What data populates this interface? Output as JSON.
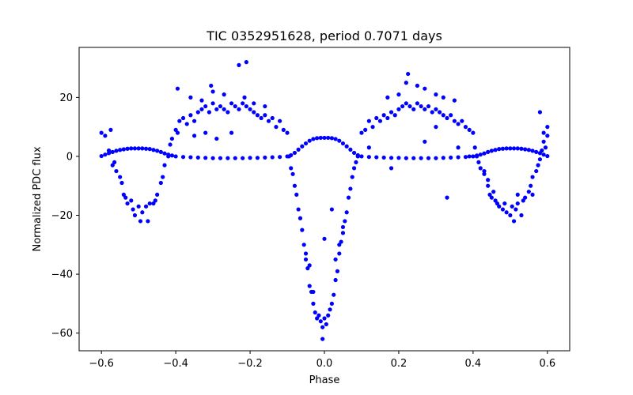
{
  "chart_data": {
    "type": "scatter",
    "title": "TIC 0352951628, period 0.7071 days",
    "xlabel": "Phase",
    "ylabel": "Normalized PDC flux",
    "xlim": [
      -0.66,
      0.66
    ],
    "ylim": [
      -66,
      37
    ],
    "xticks": [
      -0.6,
      -0.4,
      -0.2,
      0.0,
      0.2,
      0.4,
      0.6
    ],
    "xtick_labels": [
      "−0.6",
      "−0.4",
      "−0.2",
      "0.0",
      "0.2",
      "0.4",
      "0.6"
    ],
    "yticks": [
      -60,
      -40,
      -20,
      0,
      20
    ],
    "ytick_labels": [
      "−60",
      "−40",
      "−20",
      "0",
      "20"
    ],
    "grid": false,
    "marker_color": "#0000ff",
    "series": [
      {
        "values_desc": "smooth model curve",
        "points": [
          [
            -0.6,
            0.1
          ],
          [
            -0.59,
            0.6
          ],
          [
            -0.58,
            1.1
          ],
          [
            -0.57,
            1.5
          ],
          [
            -0.56,
            1.9
          ],
          [
            -0.55,
            2.2
          ],
          [
            -0.54,
            2.4
          ],
          [
            -0.53,
            2.6
          ],
          [
            -0.52,
            2.7
          ],
          [
            -0.51,
            2.7
          ],
          [
            -0.5,
            2.7
          ],
          [
            -0.49,
            2.7
          ],
          [
            -0.48,
            2.6
          ],
          [
            -0.47,
            2.5
          ],
          [
            -0.46,
            2.2
          ],
          [
            -0.45,
            1.9
          ],
          [
            -0.44,
            1.5
          ],
          [
            -0.43,
            1.0
          ],
          [
            -0.42,
            0.6
          ],
          [
            -0.41,
            0.3
          ],
          [
            -0.4,
            0.0
          ],
          [
            -0.38,
            -0.2
          ],
          [
            -0.36,
            -0.3
          ],
          [
            -0.34,
            -0.4
          ],
          [
            -0.32,
            -0.5
          ],
          [
            -0.3,
            -0.6
          ],
          [
            -0.28,
            -0.6
          ],
          [
            -0.26,
            -0.6
          ],
          [
            -0.24,
            -0.6
          ],
          [
            -0.22,
            -0.6
          ],
          [
            -0.2,
            -0.5
          ],
          [
            -0.18,
            -0.5
          ],
          [
            -0.16,
            -0.4
          ],
          [
            -0.14,
            -0.3
          ],
          [
            -0.12,
            -0.2
          ],
          [
            -0.1,
            0.0
          ],
          [
            -0.09,
            0.4
          ],
          [
            -0.08,
            1.2
          ],
          [
            -0.07,
            2.3
          ],
          [
            -0.06,
            3.4
          ],
          [
            -0.05,
            4.4
          ],
          [
            -0.04,
            5.3
          ],
          [
            -0.03,
            5.9
          ],
          [
            -0.02,
            6.2
          ],
          [
            -0.01,
            6.3
          ],
          [
            0.0,
            6.3
          ],
          [
            0.01,
            6.3
          ],
          [
            0.02,
            6.2
          ],
          [
            0.03,
            5.9
          ],
          [
            0.04,
            5.3
          ],
          [
            0.05,
            4.4
          ],
          [
            0.06,
            3.4
          ],
          [
            0.07,
            2.3
          ],
          [
            0.08,
            1.2
          ],
          [
            0.09,
            0.4
          ],
          [
            0.1,
            0.0
          ],
          [
            0.12,
            -0.2
          ],
          [
            0.14,
            -0.3
          ],
          [
            0.16,
            -0.4
          ],
          [
            0.18,
            -0.5
          ],
          [
            0.2,
            -0.5
          ],
          [
            0.22,
            -0.6
          ],
          [
            0.24,
            -0.6
          ],
          [
            0.26,
            -0.6
          ],
          [
            0.28,
            -0.6
          ],
          [
            0.3,
            -0.6
          ],
          [
            0.32,
            -0.5
          ],
          [
            0.34,
            -0.4
          ],
          [
            0.36,
            -0.3
          ],
          [
            0.38,
            -0.2
          ],
          [
            0.4,
            0.0
          ],
          [
            0.41,
            0.3
          ],
          [
            0.42,
            0.6
          ],
          [
            0.43,
            1.0
          ],
          [
            0.44,
            1.5
          ],
          [
            0.45,
            1.9
          ],
          [
            0.46,
            2.2
          ],
          [
            0.47,
            2.5
          ],
          [
            0.48,
            2.6
          ],
          [
            0.49,
            2.7
          ],
          [
            0.5,
            2.7
          ],
          [
            0.51,
            2.7
          ],
          [
            0.52,
            2.7
          ],
          [
            0.53,
            2.6
          ],
          [
            0.54,
            2.4
          ],
          [
            0.55,
            2.2
          ],
          [
            0.56,
            1.9
          ],
          [
            0.57,
            1.5
          ],
          [
            0.58,
            1.1
          ],
          [
            0.59,
            0.6
          ],
          [
            0.6,
            0.1
          ]
        ]
      },
      {
        "values_desc": "observed flux points",
        "points": [
          [
            -0.6,
            8
          ],
          [
            -0.59,
            7
          ],
          [
            -0.58,
            2
          ],
          [
            -0.575,
            9
          ],
          [
            -0.57,
            -3
          ],
          [
            -0.565,
            -2
          ],
          [
            -0.56,
            -5
          ],
          [
            -0.55,
            -7
          ],
          [
            -0.545,
            -9
          ],
          [
            -0.54,
            -13
          ],
          [
            -0.535,
            -14
          ],
          [
            -0.53,
            -16
          ],
          [
            -0.52,
            -15
          ],
          [
            -0.515,
            -18
          ],
          [
            -0.51,
            -20
          ],
          [
            -0.5,
            -17
          ],
          [
            -0.495,
            -22
          ],
          [
            -0.49,
            -19
          ],
          [
            -0.48,
            -17
          ],
          [
            -0.475,
            -22
          ],
          [
            -0.47,
            -16
          ],
          [
            -0.46,
            -16
          ],
          [
            -0.455,
            -15
          ],
          [
            -0.45,
            -13
          ],
          [
            -0.44,
            -9
          ],
          [
            -0.435,
            -7
          ],
          [
            -0.43,
            -3
          ],
          [
            -0.42,
            0
          ],
          [
            -0.415,
            4
          ],
          [
            -0.41,
            6
          ],
          [
            -0.4,
            9
          ],
          [
            -0.395,
            8
          ],
          [
            -0.39,
            12
          ],
          [
            -0.38,
            13
          ],
          [
            -0.37,
            11
          ],
          [
            -0.36,
            14
          ],
          [
            -0.35,
            12
          ],
          [
            -0.34,
            15
          ],
          [
            -0.33,
            16
          ],
          [
            -0.32,
            17
          ],
          [
            -0.31,
            15
          ],
          [
            -0.3,
            18
          ],
          [
            -0.29,
            16
          ],
          [
            -0.28,
            17
          ],
          [
            -0.27,
            16
          ],
          [
            -0.26,
            15
          ],
          [
            -0.25,
            18
          ],
          [
            -0.24,
            17
          ],
          [
            -0.23,
            16
          ],
          [
            -0.22,
            18
          ],
          [
            -0.21,
            17
          ],
          [
            -0.2,
            16
          ],
          [
            -0.19,
            15
          ],
          [
            -0.18,
            14
          ],
          [
            -0.17,
            13
          ],
          [
            -0.16,
            14
          ],
          [
            -0.15,
            12
          ],
          [
            -0.14,
            13
          ],
          [
            -0.13,
            10
          ],
          [
            -0.12,
            12
          ],
          [
            -0.11,
            9
          ],
          [
            -0.1,
            8
          ],
          [
            -0.395,
            23
          ],
          [
            -0.36,
            20
          ],
          [
            -0.33,
            19
          ],
          [
            -0.305,
            24
          ],
          [
            -0.3,
            22
          ],
          [
            -0.27,
            21
          ],
          [
            -0.215,
            20
          ],
          [
            -0.21,
            32
          ],
          [
            -0.23,
            31
          ],
          [
            -0.25,
            8
          ],
          [
            -0.29,
            6
          ],
          [
            -0.32,
            8
          ],
          [
            -0.35,
            7
          ],
          [
            -0.19,
            18
          ],
          [
            -0.16,
            17
          ],
          [
            -0.095,
            0
          ],
          [
            -0.09,
            -4
          ],
          [
            -0.085,
            -6
          ],
          [
            -0.08,
            -10
          ],
          [
            -0.075,
            -13
          ],
          [
            -0.07,
            -18
          ],
          [
            -0.065,
            -21
          ],
          [
            -0.06,
            -25
          ],
          [
            -0.055,
            -30
          ],
          [
            -0.05,
            -35
          ],
          [
            -0.045,
            -38
          ],
          [
            -0.04,
            -44
          ],
          [
            -0.035,
            -46
          ],
          [
            -0.03,
            -50
          ],
          [
            -0.025,
            -53
          ],
          [
            -0.02,
            -55
          ],
          [
            -0.015,
            -54
          ],
          [
            -0.01,
            -56
          ],
          [
            -0.005,
            -58
          ],
          [
            0.0,
            -55
          ],
          [
            0.005,
            -57
          ],
          [
            0.01,
            -54
          ],
          [
            0.015,
            -52
          ],
          [
            0.02,
            -50
          ],
          [
            0.025,
            -47
          ],
          [
            0.03,
            -42
          ],
          [
            0.035,
            -39
          ],
          [
            0.04,
            -33
          ],
          [
            0.045,
            -29
          ],
          [
            0.05,
            -26
          ],
          [
            0.055,
            -22
          ],
          [
            0.06,
            -19
          ],
          [
            0.065,
            -14
          ],
          [
            0.07,
            -11
          ],
          [
            0.075,
            -7
          ],
          [
            0.08,
            -4
          ],
          [
            0.085,
            -2
          ],
          [
            0.09,
            0
          ],
          [
            -0.04,
            -37
          ],
          [
            -0.03,
            -46
          ],
          [
            0.03,
            -35
          ],
          [
            0.04,
            -30
          ],
          [
            -0.005,
            -62
          ],
          [
            0.0,
            -28
          ],
          [
            0.02,
            -18
          ],
          [
            -0.05,
            -33
          ],
          [
            0.05,
            -24
          ],
          [
            0.1,
            8
          ],
          [
            0.11,
            9
          ],
          [
            0.12,
            12
          ],
          [
            0.13,
            10
          ],
          [
            0.14,
            13
          ],
          [
            0.15,
            12
          ],
          [
            0.16,
            14
          ],
          [
            0.17,
            13
          ],
          [
            0.18,
            15
          ],
          [
            0.19,
            14
          ],
          [
            0.2,
            16
          ],
          [
            0.21,
            17
          ],
          [
            0.22,
            18
          ],
          [
            0.23,
            17
          ],
          [
            0.24,
            16
          ],
          [
            0.25,
            18
          ],
          [
            0.26,
            17
          ],
          [
            0.27,
            16
          ],
          [
            0.28,
            17
          ],
          [
            0.29,
            15
          ],
          [
            0.3,
            16
          ],
          [
            0.31,
            15
          ],
          [
            0.32,
            14
          ],
          [
            0.33,
            13
          ],
          [
            0.34,
            14
          ],
          [
            0.35,
            12
          ],
          [
            0.36,
            11
          ],
          [
            0.37,
            12
          ],
          [
            0.38,
            10
          ],
          [
            0.39,
            9
          ],
          [
            0.4,
            8
          ],
          [
            0.225,
            28
          ],
          [
            0.22,
            25
          ],
          [
            0.25,
            24
          ],
          [
            0.27,
            23
          ],
          [
            0.3,
            21
          ],
          [
            0.32,
            20
          ],
          [
            0.35,
            19
          ],
          [
            0.2,
            21
          ],
          [
            0.17,
            20
          ],
          [
            0.12,
            3
          ],
          [
            0.18,
            -4
          ],
          [
            0.27,
            5
          ],
          [
            0.3,
            10
          ],
          [
            0.33,
            -14
          ],
          [
            0.36,
            3
          ],
          [
            0.39,
            0
          ],
          [
            0.405,
            3
          ],
          [
            0.41,
            0
          ],
          [
            0.415,
            -2
          ],
          [
            0.42,
            -4
          ],
          [
            0.43,
            -6
          ],
          [
            0.44,
            -10
          ],
          [
            0.445,
            -13
          ],
          [
            0.45,
            -14
          ],
          [
            0.46,
            -15
          ],
          [
            0.465,
            -16
          ],
          [
            0.47,
            -17
          ],
          [
            0.48,
            -18
          ],
          [
            0.485,
            -16
          ],
          [
            0.49,
            -19
          ],
          [
            0.5,
            -20
          ],
          [
            0.505,
            -17
          ],
          [
            0.51,
            -22
          ],
          [
            0.515,
            -18
          ],
          [
            0.52,
            -16
          ],
          [
            0.53,
            -20
          ],
          [
            0.535,
            -15
          ],
          [
            0.54,
            -14
          ],
          [
            0.55,
            -12
          ],
          [
            0.555,
            -10
          ],
          [
            0.56,
            -7
          ],
          [
            0.57,
            -5
          ],
          [
            0.575,
            -3
          ],
          [
            0.58,
            -1
          ],
          [
            0.585,
            2
          ],
          [
            0.59,
            5
          ],
          [
            0.595,
            3
          ],
          [
            0.6,
            10
          ],
          [
            0.58,
            15
          ],
          [
            0.59,
            8
          ],
          [
            0.6,
            7
          ],
          [
            0.56,
            -13
          ],
          [
            0.52,
            -13
          ],
          [
            0.455,
            -12
          ],
          [
            0.44,
            -8
          ],
          [
            0.43,
            -5
          ]
        ]
      }
    ]
  }
}
